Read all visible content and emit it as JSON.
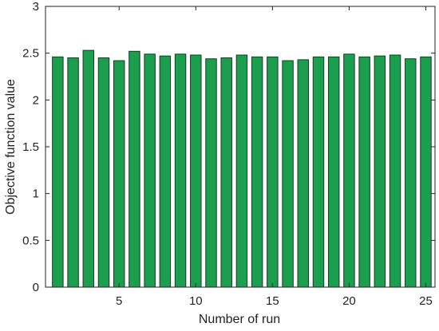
{
  "chart_data": {
    "type": "bar",
    "xlabel": "Number of run",
    "ylabel": "Objective function value",
    "x": [
      1,
      2,
      3,
      4,
      5,
      6,
      7,
      8,
      9,
      10,
      11,
      12,
      13,
      14,
      15,
      16,
      17,
      18,
      19,
      20,
      21,
      22,
      23,
      24,
      25
    ],
    "values": [
      2.46,
      2.45,
      2.53,
      2.45,
      2.42,
      2.52,
      2.49,
      2.47,
      2.49,
      2.48,
      2.44,
      2.45,
      2.48,
      2.46,
      2.46,
      2.42,
      2.43,
      2.46,
      2.46,
      2.49,
      2.46,
      2.47,
      2.48,
      2.44,
      2.46
    ],
    "color": "#1c9e4f",
    "xlim": [
      0.2,
      25.6
    ],
    "xticks": [
      5,
      10,
      15,
      20,
      25
    ],
    "ylim": [
      0,
      3
    ],
    "yticks": [
      0,
      0.5,
      1,
      1.5,
      2,
      2.5,
      3
    ]
  }
}
